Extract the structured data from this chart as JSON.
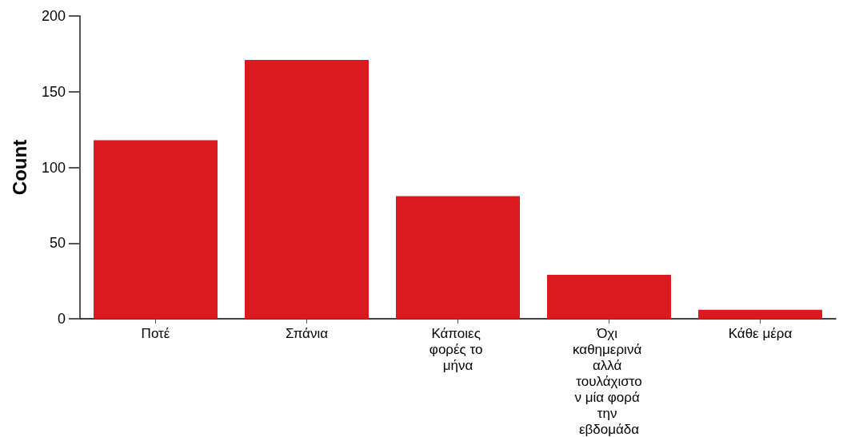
{
  "chart_data": {
    "type": "bar",
    "ylabel": "Count",
    "categories": [
      "Ποτέ",
      "Σπάνια",
      "Κάποιες φορές το μήνα",
      "Όχι καθημερινά αλλά τουλάχιστον μία φορά την εβδομάδα",
      "Κάθε μέρα"
    ],
    "values": [
      118,
      171,
      81,
      29,
      6
    ],
    "color": "#da1a1f",
    "ylim": [
      0,
      200
    ],
    "yticks": [
      0,
      50,
      100,
      150,
      200
    ],
    "grid": false
  }
}
